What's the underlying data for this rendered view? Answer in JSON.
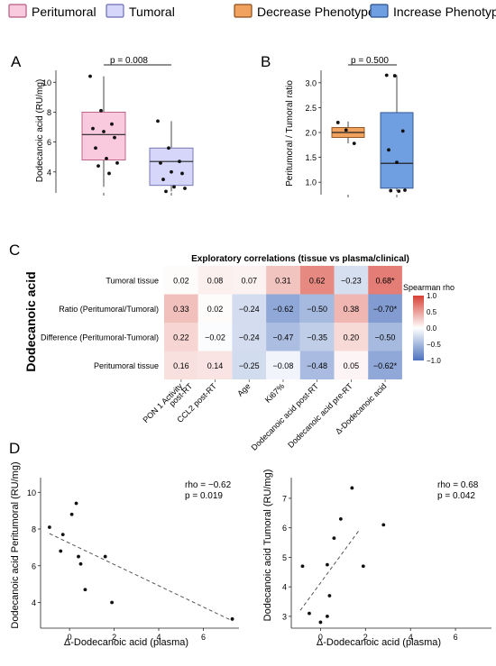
{
  "legend": {
    "items": [
      {
        "label": "Peritumoral",
        "color": "#f9c9dd"
      },
      {
        "label": "Tumoral",
        "color": "#d6d6fa"
      },
      {
        "label": "Decrease Phenotype",
        "color": "#f2a25f"
      },
      {
        "label": "Increase Phenotype",
        "color": "#6f9fe0"
      }
    ]
  },
  "panels": {
    "A": "A",
    "B": "B",
    "C": "C",
    "D": "D"
  },
  "chart_data": [
    {
      "id": "A",
      "type": "box",
      "ylabel": "Dodecanoic acid (RU/mg)",
      "ylim": [
        2.6,
        10.8
      ],
      "yticks": [
        4,
        6,
        8,
        10
      ],
      "pvalue": "p = 0.008",
      "boxes": [
        {
          "name": "Peritumoral",
          "color": "#f9c9dd",
          "border": "#b85a80",
          "min": 3.0,
          "q1": 4.8,
          "median": 6.5,
          "q3": 8.0,
          "max": 10.4,
          "points": [
            10.4,
            8.1,
            7.2,
            6.9,
            6.7,
            6.3,
            5.6,
            4.9,
            4.6,
            4.4,
            3.9
          ]
        },
        {
          "name": "Tumoral",
          "color": "#d6d6fa",
          "border": "#6b6bb3",
          "min": 2.7,
          "q1": 3.1,
          "median": 4.7,
          "q3": 5.6,
          "max": 7.4,
          "points": [
            7.4,
            5.6,
            4.7,
            4.6,
            4.0,
            3.9,
            3.5,
            3.0,
            2.9,
            2.7
          ]
        }
      ]
    },
    {
      "id": "B",
      "type": "box",
      "ylabel": "Peritumoral / Tumoral ratio",
      "ylim": [
        0.75,
        3.25
      ],
      "yticks": [
        1.0,
        1.5,
        2.0,
        2.5,
        3.0
      ],
      "pvalue": "p = 0.500",
      "boxes": [
        {
          "name": "Decrease Phenotype",
          "color": "#f2a25f",
          "border": "#8a4e1a",
          "min": 1.78,
          "q1": 1.9,
          "median": 2.0,
          "q3": 2.1,
          "max": 2.22,
          "points": [
            2.2,
            2.05,
            1.78
          ]
        },
        {
          "name": "Increase Phenotype",
          "color": "#6f9fe0",
          "border": "#2b4f8a",
          "min": 0.82,
          "q1": 0.88,
          "median": 1.38,
          "q3": 2.4,
          "max": 3.15,
          "points": [
            3.15,
            3.14,
            2.03,
            1.65,
            1.4,
            0.84,
            0.83,
            0.82
          ]
        }
      ]
    },
    {
      "id": "C",
      "type": "heatmap",
      "title": "Exploratory correlations (tissue vs plasma/clinical)",
      "side_label": "Dodecanoic acid",
      "rows": [
        "Tumoral tissue",
        "Ratio (Peritumoral/Tumoral)",
        "Difference (Peritumoral-Tumoral)",
        "Peritumoral tissue"
      ],
      "columns": [
        "PON 1 Activity post-RT",
        "CCL2 post-RT",
        "Age",
        "Ki67%",
        "Dodecanoic acid post-RT",
        "Dodecanoic acid pre-RT",
        "Δ-Dodecanoic acid"
      ],
      "values": [
        [
          0.02,
          0.08,
          0.07,
          0.31,
          0.62,
          -0.23,
          0.68
        ],
        [
          0.33,
          0.02,
          -0.24,
          -0.62,
          -0.5,
          0.38,
          -0.7
        ],
        [
          0.22,
          -0.02,
          -0.24,
          -0.47,
          -0.35,
          0.2,
          -0.5
        ],
        [
          0.16,
          0.14,
          -0.25,
          -0.08,
          -0.48,
          0.05,
          -0.62
        ]
      ],
      "labels": [
        [
          "0.02",
          "0.08",
          "0.07",
          "0.31",
          "0.62",
          "−0.23",
          "0.68*"
        ],
        [
          "0.33",
          "0.02",
          "−0.24",
          "−0.62",
          "−0.50",
          "0.38",
          "−0.70*"
        ],
        [
          "0.22",
          "−0.02",
          "−0.24",
          "−0.47",
          "−0.35",
          "0.20",
          "−0.50"
        ],
        [
          "0.16",
          "0.14",
          "−0.25",
          "−0.08",
          "−0.48",
          "0.05",
          "−0.62*"
        ]
      ],
      "colorbar": {
        "title": "Spearman rho",
        "ticks": [
          "1.0",
          "0.5",
          "0.0",
          "−0.5",
          "−1.0"
        ],
        "tick_values": [
          1.0,
          0.5,
          0.0,
          -0.5,
          -1.0
        ]
      }
    },
    {
      "id": "D1",
      "type": "scatter",
      "xlabel": "Δ-Dodecanoic acid (plasma)",
      "ylabel": "Dodecanoic acid Peritumoral (RU/mg)",
      "xlim": [
        -1.3,
        7.6
      ],
      "ylim": [
        2.6,
        10.8
      ],
      "xticks": [
        0,
        2,
        4,
        6
      ],
      "yticks": [
        4,
        6,
        8,
        10
      ],
      "stats": [
        "rho = −0.62",
        "p = 0.019"
      ],
      "points": [
        [
          -0.9,
          8.1
        ],
        [
          -0.4,
          6.8
        ],
        [
          -0.3,
          7.7
        ],
        [
          0.1,
          8.8
        ],
        [
          0.3,
          9.4
        ],
        [
          0.4,
          6.5
        ],
        [
          0.5,
          6.1
        ],
        [
          0.7,
          4.7
        ],
        [
          1.6,
          6.5
        ],
        [
          1.9,
          4.0
        ],
        [
          7.3,
          3.1
        ]
      ],
      "trend": {
        "x": [
          -0.9,
          7.3
        ],
        "y": [
          7.75,
          3.0
        ]
      }
    },
    {
      "id": "D2",
      "type": "scatter",
      "xlabel": "Δ-Dodecanoic acid (plasma)",
      "ylabel": "Dodecanoic acid Tumoral (RU/mg)",
      "xlim": [
        -1.3,
        7.6
      ],
      "ylim": [
        2.6,
        7.7
      ],
      "xticks": [
        0,
        2,
        4,
        6
      ],
      "yticks": [
        3,
        4,
        5,
        6,
        7
      ],
      "stats": [
        "rho = 0.68",
        "p = 0.042"
      ],
      "points": [
        [
          -0.8,
          4.7
        ],
        [
          -0.5,
          3.1
        ],
        [
          0.0,
          2.8
        ],
        [
          0.3,
          3.0
        ],
        [
          0.3,
          4.75
        ],
        [
          0.4,
          3.7
        ],
        [
          0.6,
          5.65
        ],
        [
          0.9,
          6.3
        ],
        [
          1.4,
          7.35
        ],
        [
          1.9,
          4.7
        ],
        [
          2.8,
          6.1
        ]
      ],
      "trend": {
        "x": [
          -0.9,
          1.7
        ],
        "y": [
          3.2,
          5.9
        ]
      }
    }
  ]
}
